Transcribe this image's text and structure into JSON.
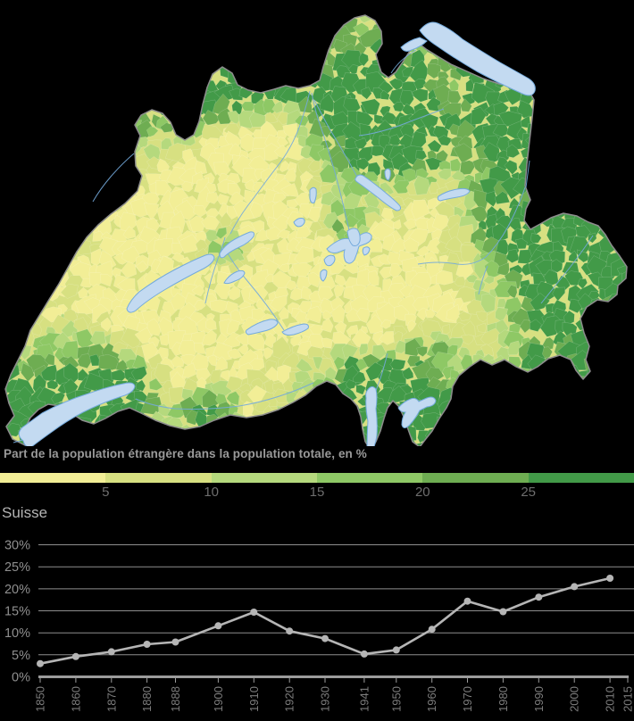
{
  "legend": {
    "title": "Part de la population étrangère dans la population totale, en %",
    "tick_labels": [
      "5",
      "10",
      "15",
      "20",
      "25"
    ],
    "bucket_colors": [
      "#f2ee96",
      "#d7e081",
      "#b5d97d",
      "#8ec865",
      "#6ead52",
      "#429a48"
    ]
  },
  "map": {
    "lake_fill": "#c3daf1",
    "water_stroke": "#74aadc",
    "border_color": "#8c8c8c",
    "base_fill": "#d7e081"
  },
  "chart_data": {
    "type": "line",
    "title": "Suisse",
    "x": [
      1850,
      1860,
      1870,
      1880,
      1888,
      1900,
      1910,
      1920,
      1930,
      1941,
      1950,
      1960,
      1970,
      1980,
      1990,
      2000,
      2010
    ],
    "values": [
      3.0,
      4.6,
      5.7,
      7.4,
      7.9,
      11.6,
      14.7,
      10.4,
      8.7,
      5.2,
      6.1,
      10.8,
      17.2,
      14.8,
      18.1,
      20.5,
      22.4
    ],
    "x_tick_labels": [
      "1850",
      "1860",
      "1870",
      "1880",
      "1888",
      "1900",
      "1910",
      "1920",
      "1930",
      "1941",
      "1950",
      "1960",
      "1970",
      "1980",
      "1990",
      "2000",
      "2010",
      "2015"
    ],
    "y_tick_labels": [
      "0%",
      "5%",
      "10%",
      "15%",
      "20%",
      "25%",
      "30%"
    ],
    "ylim": [
      0,
      30
    ],
    "xlim": [
      1850,
      2015
    ],
    "grid": true,
    "line_color": "#b5b5b5",
    "gridline_color": "#8e8e8e",
    "axis_color": "#9c9c9c",
    "y_label_color": "#8f8f8f",
    "x_label_color": "#7c7c7c"
  }
}
